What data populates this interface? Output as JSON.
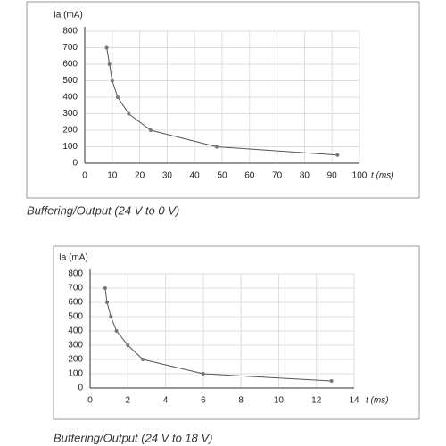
{
  "chart_data": [
    {
      "type": "line",
      "caption": "Buffering/Output (24 V to 0 V)",
      "x_label": "t (ms)",
      "y_label": "Ia (mA)",
      "x": [
        8,
        9,
        10,
        12,
        16,
        24,
        48,
        92
      ],
      "series": [
        {
          "color": "#555555",
          "values": [
            700,
            600,
            500,
            400,
            300,
            200,
            100,
            50
          ]
        }
      ],
      "xlim": [
        0,
        100
      ],
      "xticks": [
        0,
        10,
        20,
        30,
        40,
        50,
        60,
        70,
        80,
        90,
        100
      ],
      "ylim": [
        0,
        800
      ],
      "yticks": [
        0,
        100,
        200,
        300,
        400,
        500,
        600,
        700,
        800
      ],
      "grid": true
    },
    {
      "type": "line",
      "caption": "Buffering/Output (24 V to 18 V)",
      "x_label": "t (ms)",
      "y_label": "Ia (mA)",
      "x": [
        0.8,
        0.9,
        1.1,
        1.4,
        2.0,
        2.8,
        6.0,
        12.8
      ],
      "series": [
        {
          "color": "#555555",
          "values": [
            700,
            600,
            500,
            400,
            300,
            200,
            100,
            50
          ]
        }
      ],
      "xlim": [
        0,
        14
      ],
      "xticks": [
        0,
        2,
        4,
        6,
        8,
        10,
        12,
        14
      ],
      "ylim": [
        0,
        800
      ],
      "yticks": [
        0,
        100,
        200,
        300,
        400,
        500,
        600,
        700,
        800
      ],
      "grid": true
    }
  ]
}
